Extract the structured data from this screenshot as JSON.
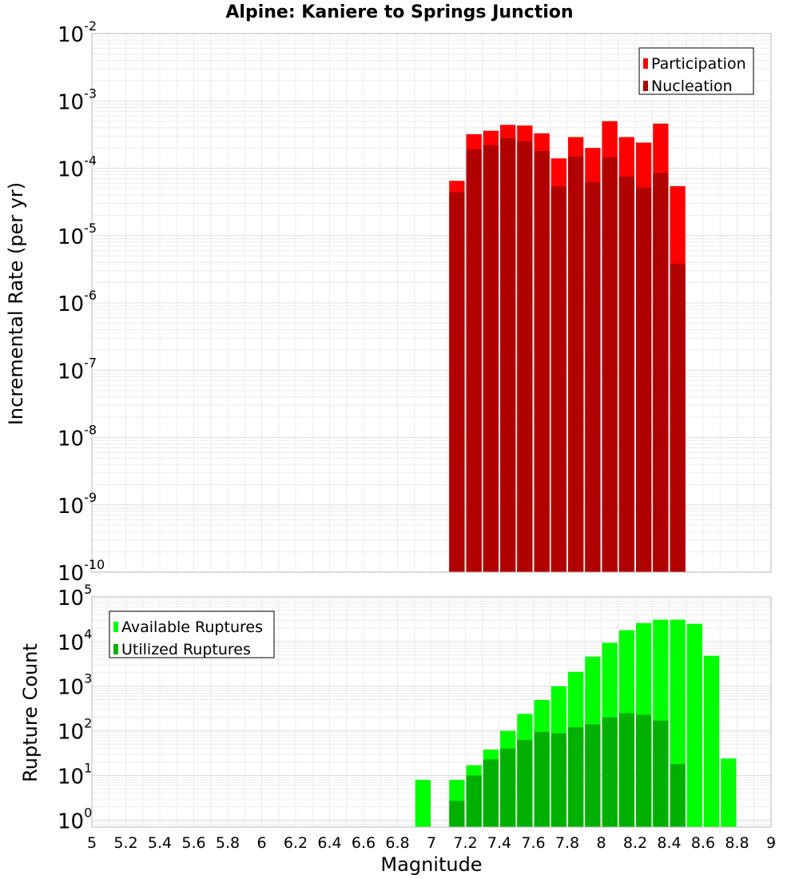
{
  "chart_data": [
    {
      "type": "bar",
      "title": "Alpine: Kaniere to Springs Junction",
      "xlabel": "Magnitude",
      "ylabel": "Incremental Rate (per yr)",
      "yscale": "log",
      "ylim": [
        1e-10,
        0.01
      ],
      "xlim": [
        5,
        9
      ],
      "bin_width": 0.1,
      "grid": true,
      "legend_position": "top-right",
      "x": [
        7.15,
        7.25,
        7.35,
        7.45,
        7.55,
        7.65,
        7.75,
        7.85,
        7.95,
        8.05,
        8.15,
        8.25,
        8.35,
        8.45
      ],
      "series": [
        {
          "name": "Participation",
          "color": "#ff0000",
          "values": [
            6.5e-05,
            0.00032,
            0.00036,
            0.00044,
            0.00043,
            0.00033,
            0.00014,
            0.00029,
            0.0002,
            0.0005,
            0.00029,
            0.00024,
            0.00046,
            5.4e-05
          ]
        },
        {
          "name": "Nucleation",
          "color": "#b00000",
          "values": [
            4.4e-05,
            0.00019,
            0.00022,
            0.00028,
            0.00025,
            0.00018,
            5.4e-05,
            0.00015,
            6.2e-05,
            0.000145,
            7.5e-05,
            5.2e-05,
            8.5e-05,
            3.8e-06
          ]
        }
      ]
    },
    {
      "type": "bar",
      "title": "",
      "xlabel": "Magnitude",
      "ylabel": "Rupture Count",
      "yscale": "log",
      "ylim": [
        0.7,
        100000
      ],
      "xlim": [
        5,
        9
      ],
      "bin_width": 0.1,
      "grid": true,
      "legend_position": "top-left",
      "x_ticks": [
        5,
        5.2,
        5.4,
        5.6,
        5.8,
        6,
        6.2,
        6.4,
        6.6,
        6.8,
        7,
        7.2,
        7.4,
        7.6,
        7.8,
        8,
        8.2,
        8.4,
        8.6,
        8.8,
        9
      ],
      "x": [
        6.95,
        7.15,
        7.25,
        7.35,
        7.45,
        7.55,
        7.65,
        7.75,
        7.85,
        7.95,
        8.05,
        8.15,
        8.25,
        8.35,
        8.45,
        8.55,
        8.65,
        8.75
      ],
      "series": [
        {
          "name": "Available Ruptures",
          "color": "#00ff00",
          "values": [
            8,
            8,
            17,
            38,
            100,
            240,
            490,
            1000,
            2100,
            4600,
            9400,
            18000,
            26000,
            31000,
            31000,
            25000,
            4800,
            24
          ]
        },
        {
          "name": "Utilized Ruptures",
          "color": "#00b000",
          "values": [
            0,
            2.7,
            10,
            23,
            40,
            63,
            95,
            88,
            120,
            140,
            200,
            250,
            230,
            170,
            18,
            0,
            0,
            0
          ]
        }
      ]
    }
  ]
}
